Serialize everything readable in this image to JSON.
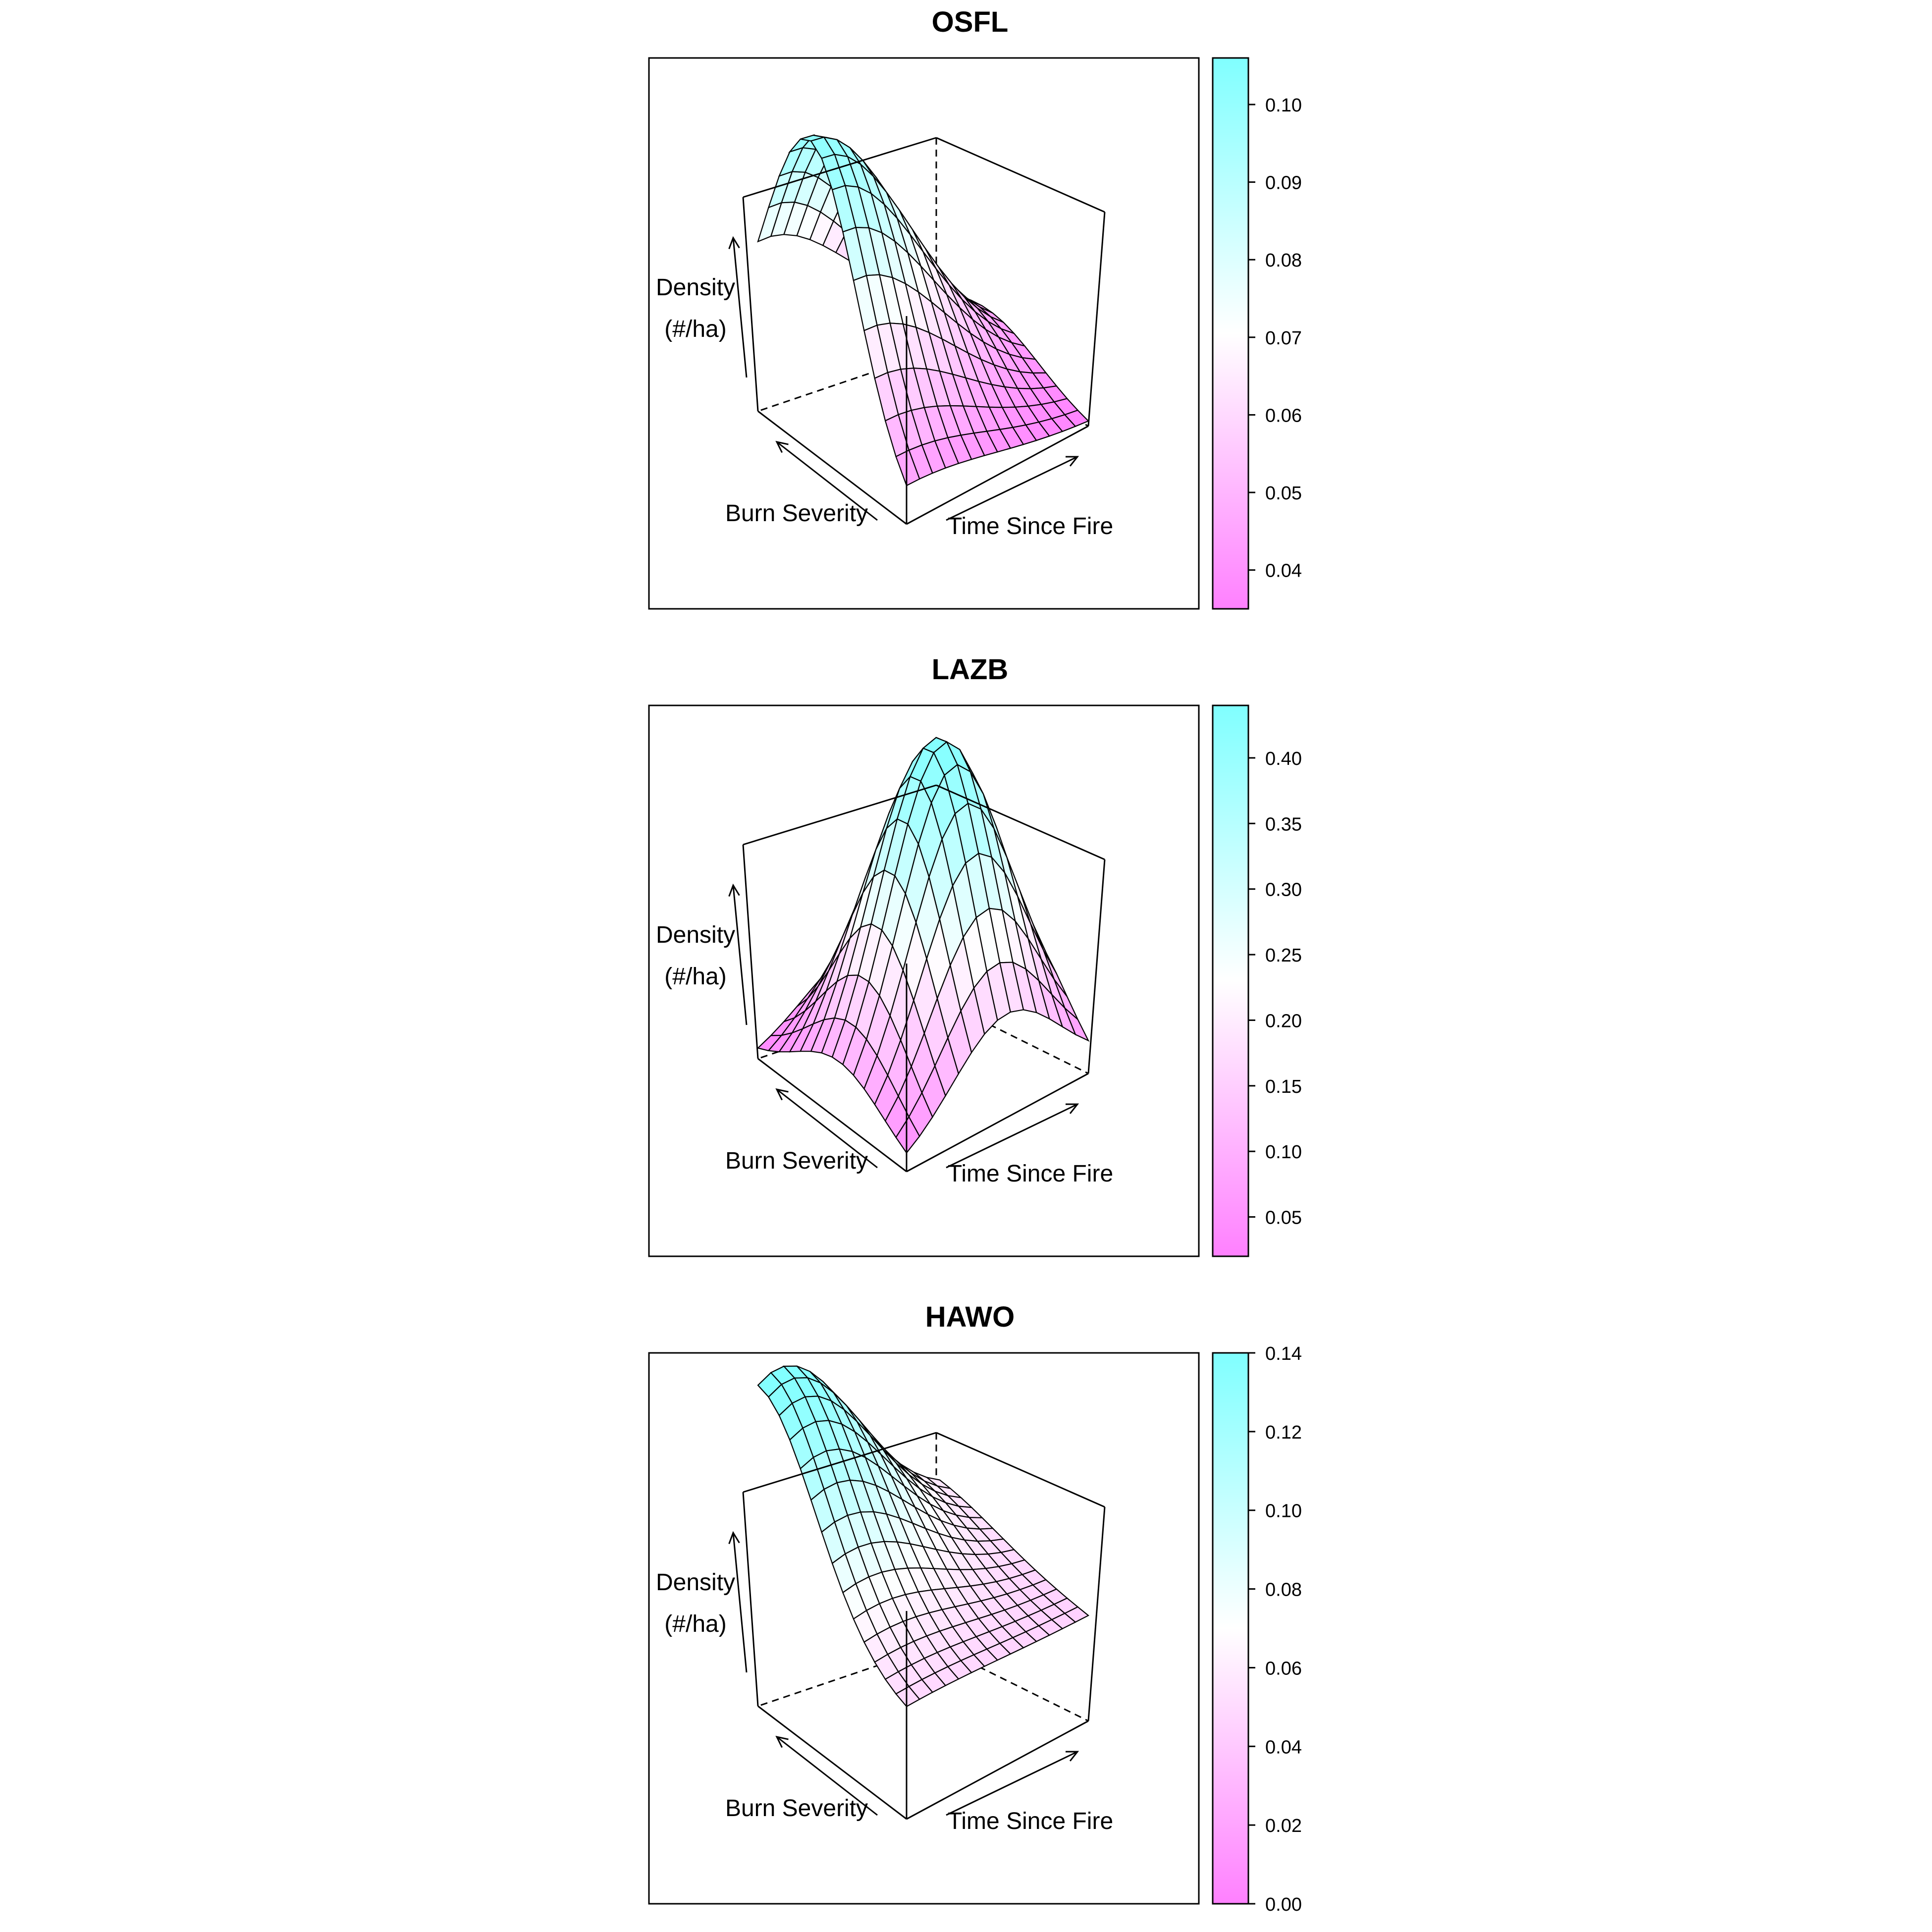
{
  "chart_data": [
    {
      "type": "surface",
      "title": "OSFL",
      "xlabel": "Burn Severity",
      "ylabel": "Time Since Fire",
      "zlabel": [
        "Density",
        "(#/ha)"
      ],
      "colorbar": {
        "range": [
          0.035,
          0.106
        ],
        "ticks": [
          "0.04",
          "0.05",
          "0.06",
          "0.07",
          "0.08",
          "0.09",
          "0.10"
        ],
        "low_color": "#ff80ff",
        "mid_color": "#ffffff",
        "high_color": "#80ffff"
      },
      "surface": {
        "min": 0.035,
        "max": 0.106,
        "min_level": 0.0,
        "max_level": 0.95,
        "opt_burn": 0.65,
        "opt_time": 0.0,
        "burn_width": 0.45,
        "time_width": 0.7
      }
    },
    {
      "type": "surface",
      "title": "LAZB",
      "xlabel": "Burn Severity",
      "ylabel": "Time Since Fire",
      "zlabel": [
        "Density",
        "(#/ha)"
      ],
      "colorbar": {
        "range": [
          0.02,
          0.44
        ],
        "ticks": [
          "0.05",
          "0.10",
          "0.15",
          "0.20",
          "0.25",
          "0.30",
          "0.35",
          "0.40"
        ],
        "low_color": "#ff80ff",
        "mid_color": "#ffffff",
        "high_color": "#80ffff"
      },
      "surface": {
        "min": 0.02,
        "max": 0.44,
        "min_level": 0.0,
        "max_level": 1.0,
        "opt_burn": 0.45,
        "opt_time": 0.55,
        "burn_width": 0.42,
        "time_width": 0.42
      }
    },
    {
      "type": "surface",
      "title": "HAWO",
      "xlabel": "Burn Severity",
      "ylabel": "Time Since Fire",
      "zlabel": [
        "Density",
        "(#/ha)"
      ],
      "colorbar": {
        "range": [
          0.0,
          0.14
        ],
        "ticks": [
          "0.00",
          "0.02",
          "0.04",
          "0.06",
          "0.08",
          "0.10",
          "0.12",
          "0.14"
        ],
        "low_color": "#ff80ff",
        "mid_color": "#ffffff",
        "high_color": "#80ffff"
      },
      "surface": {
        "min": 0.0,
        "max": 0.14,
        "min_level": 0.32,
        "max_level": 1.0,
        "opt_burn": 1.0,
        "opt_time": 0.1,
        "burn_width": 0.55,
        "time_width": 0.6
      }
    }
  ]
}
